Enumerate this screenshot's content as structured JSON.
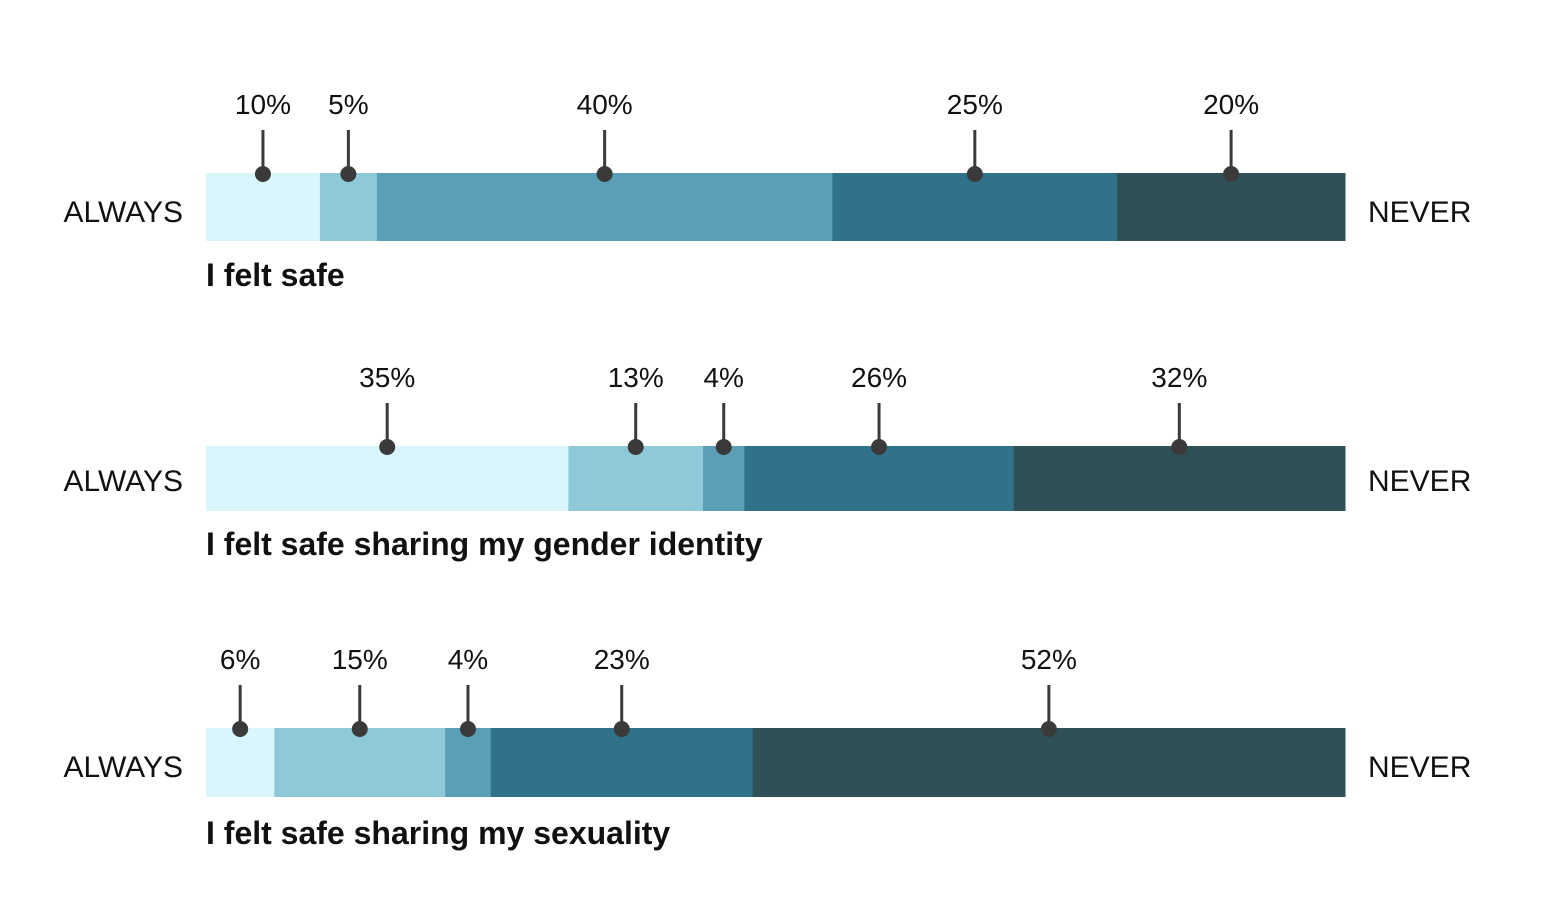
{
  "chart_data": [
    {
      "type": "bar",
      "orientation": "horizontal-stacked",
      "title": "I felt safe",
      "left_label": "ALWAYS",
      "right_label": "NEVER",
      "values": [
        10,
        5,
        40,
        25,
        20
      ],
      "labels": [
        "10%",
        "5%",
        "40%",
        "25%",
        "20%"
      ]
    },
    {
      "type": "bar",
      "orientation": "horizontal-stacked",
      "title": "I felt safe sharing my gender identity",
      "left_label": "ALWAYS",
      "right_label": "NEVER",
      "values": [
        35,
        13,
        4,
        26,
        32
      ],
      "labels": [
        "35%",
        "13%",
        "4%",
        "26%",
        "32%"
      ]
    },
    {
      "type": "bar",
      "orientation": "horizontal-stacked",
      "title": "I felt safe sharing my sexuality",
      "left_label": "ALWAYS",
      "right_label": "NEVER",
      "values": [
        6,
        15,
        4,
        23,
        52
      ],
      "labels": [
        "6%",
        "15%",
        "4%",
        "23%",
        "52%"
      ]
    }
  ],
  "colors": [
    "#d8f6fb",
    "#8fc8d9",
    "#5b9fb6",
    "#2f728a",
    "#2e5157"
  ]
}
